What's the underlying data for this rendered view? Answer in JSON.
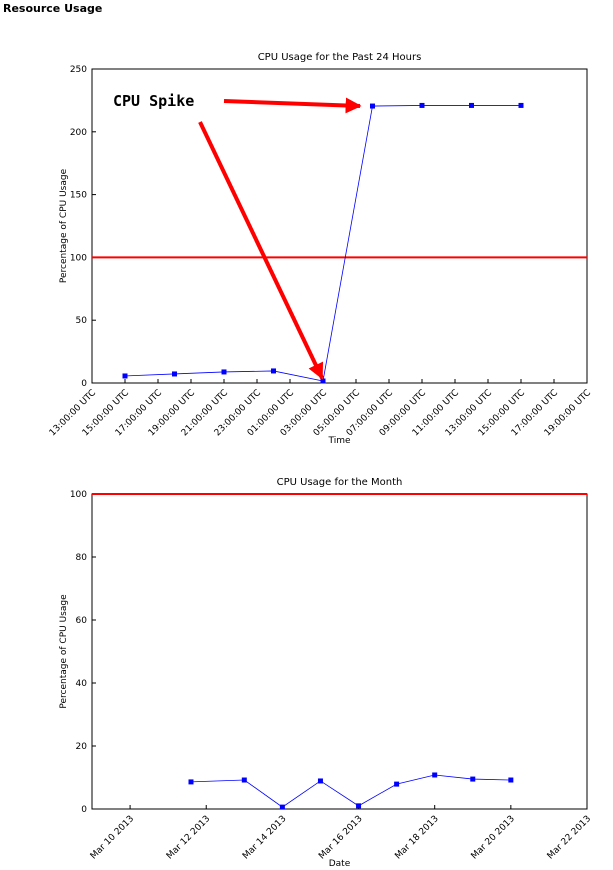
{
  "page_title": "Resource Usage",
  "chart_data": [
    {
      "type": "line",
      "title": "CPU Usage for the Past 24 Hours",
      "xlabel": "Time",
      "ylabel": "Percentage of CPU Usage",
      "xlim": [
        0,
        30
      ],
      "xticks": [
        {
          "value": 0,
          "label": "13:00:00 UTC"
        },
        {
          "value": 2,
          "label": "15:00:00 UTC"
        },
        {
          "value": 4,
          "label": "17:00:00 UTC"
        },
        {
          "value": 6,
          "label": "19:00:00 UTC"
        },
        {
          "value": 8,
          "label": "21:00:00 UTC"
        },
        {
          "value": 10,
          "label": "23:00:00 UTC"
        },
        {
          "value": 12,
          "label": "01:00:00 UTC"
        },
        {
          "value": 14,
          "label": "03:00:00 UTC"
        },
        {
          "value": 16,
          "label": "05:00:00 UTC"
        },
        {
          "value": 18,
          "label": "07:00:00 UTC"
        },
        {
          "value": 20,
          "label": "09:00:00 UTC"
        },
        {
          "value": 22,
          "label": "11:00:00 UTC"
        },
        {
          "value": 24,
          "label": "13:00:00 UTC"
        },
        {
          "value": 26,
          "label": "15:00:00 UTC"
        },
        {
          "value": 28,
          "label": "17:00:00 UTC"
        },
        {
          "value": 30,
          "label": "19:00:00 UTC"
        }
      ],
      "ylim": [
        0,
        250
      ],
      "yticks": [
        0,
        50,
        100,
        150,
        200,
        250
      ],
      "x": [
        2,
        5,
        8,
        11,
        14,
        17,
        20,
        23,
        26
      ],
      "series": [
        {
          "color": "#0000ff",
          "values": [
            5.6,
            7.2,
            8.8,
            9.6,
            1.6,
            220.5,
            221,
            221,
            221
          ]
        }
      ],
      "threshold": {
        "value": 100,
        "color": "#ff0000"
      },
      "annotation": "CPU Spike"
    },
    {
      "type": "line",
      "title": "CPU Usage for the Month",
      "xlabel": "Date",
      "ylabel": "Percentage of CPU Usage",
      "xlim": [
        9,
        22
      ],
      "xticks": [
        {
          "value": 10,
          "label": "Mar 10 2013"
        },
        {
          "value": 12,
          "label": "Mar 12 2013"
        },
        {
          "value": 14,
          "label": "Mar 14 2013"
        },
        {
          "value": 16,
          "label": "Mar 16 2013"
        },
        {
          "value": 18,
          "label": "Mar 18 2013"
        },
        {
          "value": 20,
          "label": "Mar 20 2013"
        },
        {
          "value": 22,
          "label": "Mar 22 2013"
        }
      ],
      "ylim": [
        0,
        100
      ],
      "yticks": [
        0,
        20,
        40,
        60,
        80,
        100
      ],
      "x": [
        11.6,
        13,
        14,
        15,
        16,
        17,
        18,
        19,
        20
      ],
      "series": [
        {
          "color": "#0000ff",
          "values": [
            8.6,
            9.2,
            0.6,
            8.9,
            1,
            7.9,
            10.8,
            9.5,
            9.2
          ]
        }
      ],
      "threshold": {
        "value": 100,
        "color": "#ff0000"
      }
    }
  ]
}
